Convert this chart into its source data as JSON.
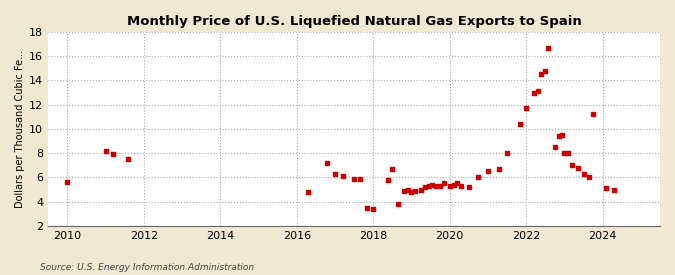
{
  "title": "Monthly Price of U.S. Liquefied Natural Gas Exports to Spain",
  "ylabel": "Dollars per Thousand Cubic Fe...",
  "source": "Source: U.S. Energy Information Administration",
  "figure_bg": "#f0e8d0",
  "axes_bg": "#ffffff",
  "dot_color": "#cc0000",
  "xlim": [
    2009.5,
    2025.5
  ],
  "ylim": [
    2,
    18
  ],
  "yticks": [
    2,
    4,
    6,
    8,
    10,
    12,
    14,
    16,
    18
  ],
  "xticks": [
    2010,
    2012,
    2014,
    2016,
    2018,
    2020,
    2022,
    2024
  ],
  "data": [
    [
      2010.0,
      5.6
    ],
    [
      2011.0,
      8.2
    ],
    [
      2011.2,
      7.9
    ],
    [
      2011.6,
      7.5
    ],
    [
      2016.3,
      4.8
    ],
    [
      2016.8,
      7.2
    ],
    [
      2017.0,
      6.3
    ],
    [
      2017.2,
      6.1
    ],
    [
      2017.5,
      5.9
    ],
    [
      2017.65,
      5.9
    ],
    [
      2017.85,
      3.5
    ],
    [
      2018.0,
      3.4
    ],
    [
      2018.4,
      5.8
    ],
    [
      2018.5,
      6.7
    ],
    [
      2018.65,
      3.8
    ],
    [
      2018.8,
      4.9
    ],
    [
      2018.9,
      5.0
    ],
    [
      2019.0,
      4.8
    ],
    [
      2019.1,
      4.9
    ],
    [
      2019.25,
      5.0
    ],
    [
      2019.35,
      5.2
    ],
    [
      2019.45,
      5.3
    ],
    [
      2019.55,
      5.4
    ],
    [
      2019.65,
      5.3
    ],
    [
      2019.75,
      5.25
    ],
    [
      2019.85,
      5.5
    ],
    [
      2020.0,
      5.3
    ],
    [
      2020.1,
      5.4
    ],
    [
      2020.2,
      5.55
    ],
    [
      2020.3,
      5.3
    ],
    [
      2020.5,
      5.2
    ],
    [
      2020.75,
      6.0
    ],
    [
      2021.0,
      6.5
    ],
    [
      2021.3,
      6.7
    ],
    [
      2021.5,
      8.0
    ],
    [
      2021.85,
      10.4
    ],
    [
      2022.0,
      11.7
    ],
    [
      2022.2,
      13.0
    ],
    [
      2022.3,
      13.1
    ],
    [
      2022.4,
      14.5
    ],
    [
      2022.5,
      14.8
    ],
    [
      2022.58,
      16.7
    ],
    [
      2022.75,
      8.5
    ],
    [
      2022.85,
      9.4
    ],
    [
      2022.95,
      9.5
    ],
    [
      2023.0,
      8.0
    ],
    [
      2023.1,
      8.0
    ],
    [
      2023.2,
      7.0
    ],
    [
      2023.35,
      6.8
    ],
    [
      2023.5,
      6.3
    ],
    [
      2023.65,
      6.0
    ],
    [
      2023.75,
      11.2
    ],
    [
      2024.1,
      5.1
    ],
    [
      2024.3,
      5.0
    ]
  ]
}
